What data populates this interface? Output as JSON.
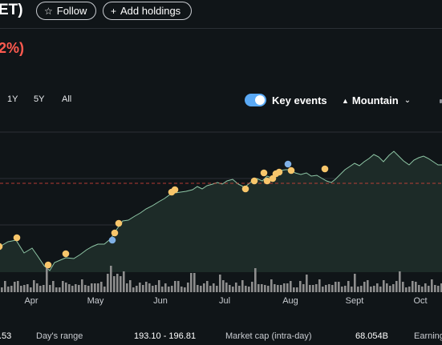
{
  "header": {
    "ticker_fragment": "ET)",
    "follow_label": "Follow",
    "add_holdings_label": "Add holdings",
    "change_fragment": "2%)"
  },
  "toolbar": {
    "ranges": [
      "1Y",
      "5Y",
      "All"
    ],
    "key_events_label": "Key events",
    "key_events_on": true,
    "chart_type_label": "Mountain",
    "icons": {
      "follow": "star-icon",
      "add": "plus-icon",
      "chart_type": "mountain-icon",
      "dropdown": "chevron-down-icon"
    }
  },
  "colors": {
    "background": "#101518",
    "line": "#8fc7a6",
    "area": "#1d2b28",
    "previous_close_line": "#e0453a",
    "event_dividend": "#f8c66b",
    "event_split": "#7fb0e6",
    "volume": "#8e8e8e",
    "negative": "#ff5a4f",
    "toggle": "#5aa9f5"
  },
  "chart_data": {
    "type": "area",
    "x_ticks": [
      "Apr",
      "May",
      "Jun",
      "Jul",
      "Aug",
      "Sept",
      "Oct"
    ],
    "y_grid_lines": true,
    "previous_close_dashed": true
  },
  "stats": {
    "open_fragment": ".53",
    "days_range_label": "Day's range",
    "days_range_value": "193.10 - 196.81",
    "market_cap_label": "Market cap (intra-day)",
    "market_cap_value": "68.054B",
    "earnings_fragment": "Earning"
  }
}
